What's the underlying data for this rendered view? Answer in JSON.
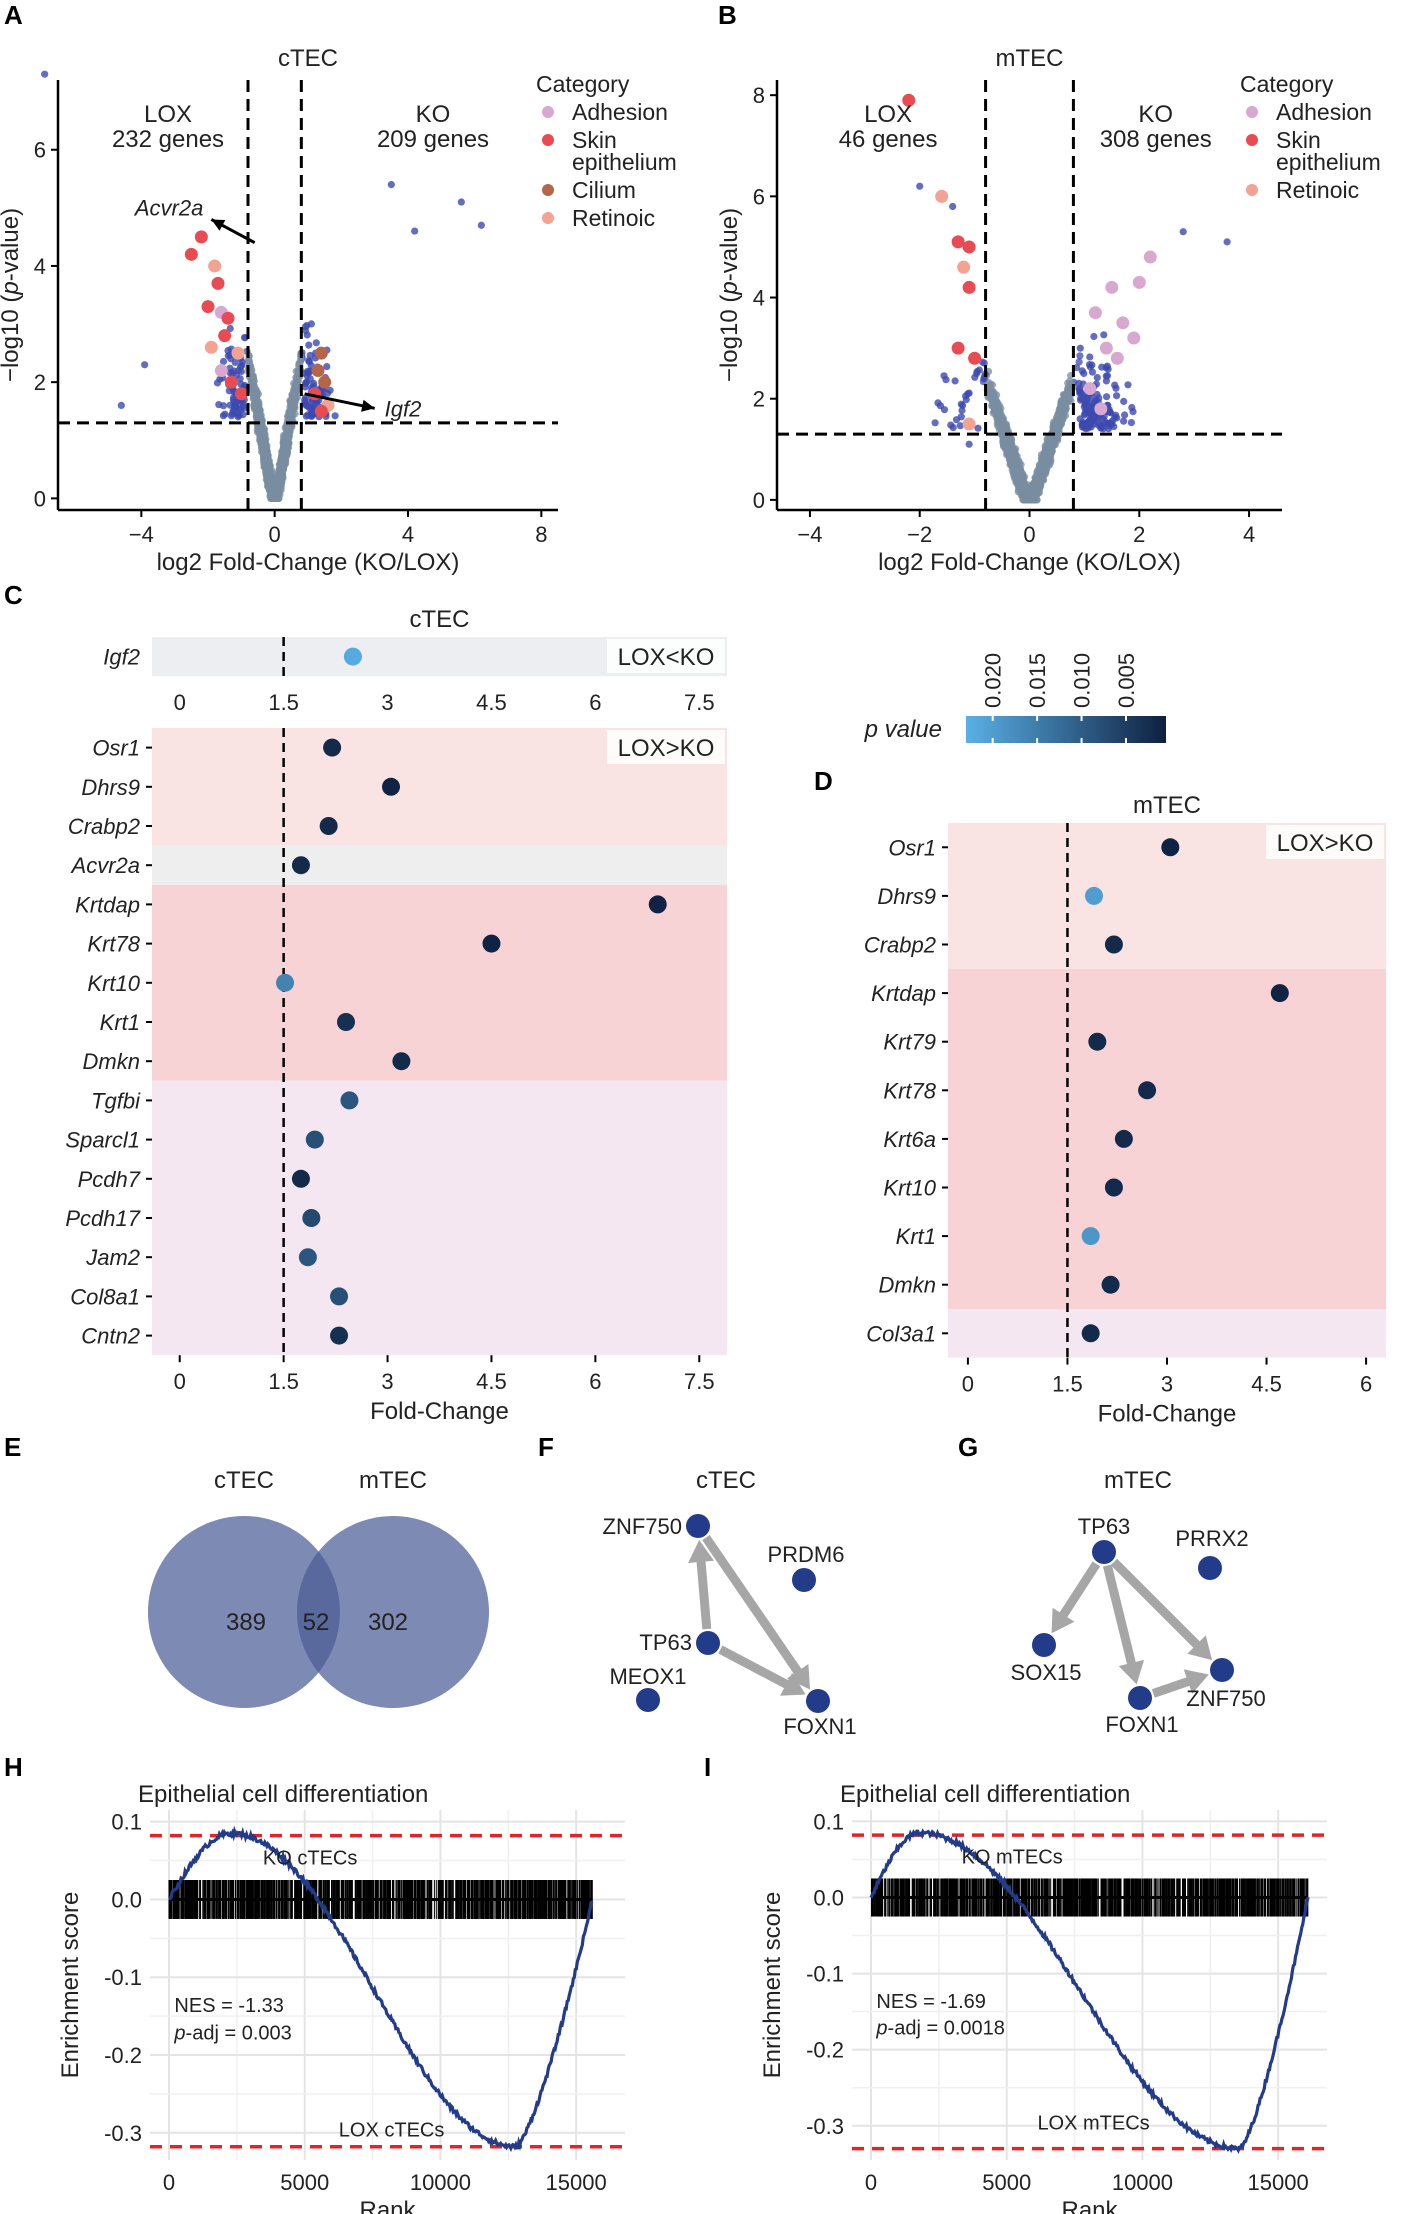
{
  "panels": {
    "A": "A",
    "B": "B",
    "C": "C",
    "D": "D",
    "E": "E",
    "F": "F",
    "G": "G",
    "H": "H",
    "I": "I"
  },
  "colors": {
    "ns": "#7a8ea1",
    "sig": "#3c4ab0",
    "adhesion": "#d9a8d0",
    "skin": "#e94b52",
    "cilium": "#b5654a",
    "retinoic": "#f2a391",
    "dark": "#0e2040",
    "node": "#233c8a",
    "edge": "#a6a6a6",
    "gsea": "#233c8a",
    "dashed_red": "#e0242a"
  },
  "chart_data": [
    {
      "id": "A",
      "type": "scatter",
      "title": "cTEC",
      "xlabel": "log2 Fold-Change (KO/LOX)",
      "ylabel": "−log10 (p-value)",
      "ylabel_parts": {
        "pre": "−log10 (",
        "mid": "p",
        "post": "-value)"
      },
      "xlim": [
        -6.5,
        8.5
      ],
      "ylim": [
        -0.2,
        7.2
      ],
      "xticks": [
        -4,
        0,
        4,
        8
      ],
      "xtick_labels": [
        "−4",
        "0",
        "4",
        "8"
      ],
      "yticks": [
        0,
        2,
        4,
        6
      ],
      "vlines": [
        -0.8,
        0.8
      ],
      "hline": 1.3,
      "left_group": {
        "label": "LOX",
        "count": "232 genes"
      },
      "right_group": {
        "label": "KO",
        "count": "209 genes"
      },
      "legend": {
        "title": "Category",
        "items": [
          {
            "name": "Adhesion",
            "key": "adhesion"
          },
          {
            "name": "Skin\nepithelium",
            "key": "skin"
          },
          {
            "name": "Cilium",
            "key": "cilium"
          },
          {
            "name": "Retinoic",
            "key": "retinoic"
          }
        ]
      },
      "annotations": [
        {
          "text": "Acvr2a",
          "x": -1.9,
          "y": 4.8,
          "from": [
            -0.6,
            4.4
          ],
          "to": [
            -1.9,
            4.8
          ]
        },
        {
          "text": "Igf2",
          "x": 3.2,
          "y": 1.55,
          "from": [
            0.9,
            1.8
          ],
          "to": [
            3.0,
            1.55
          ]
        }
      ],
      "special": [
        [
          -2.2,
          4.5
        ],
        [
          -2.5,
          4.2
        ],
        [
          -1.8,
          4.0
        ],
        [
          -1.7,
          3.7
        ],
        [
          -2.0,
          3.3
        ],
        [
          -1.6,
          3.2
        ],
        [
          -1.4,
          3.1
        ],
        [
          -1.5,
          2.8
        ],
        [
          -1.9,
          2.6
        ],
        [
          -1.6,
          2.2
        ],
        [
          -1.3,
          2.0
        ],
        [
          -1.1,
          2.5
        ],
        [
          -1.0,
          1.8
        ],
        [
          1.4,
          2.5
        ],
        [
          1.3,
          2.2
        ],
        [
          1.5,
          2.0
        ],
        [
          1.2,
          1.8
        ],
        [
          1.6,
          1.6
        ],
        [
          1.4,
          1.5
        ]
      ],
      "special_cat": [
        "skin",
        "skin",
        "retinoic",
        "skin",
        "skin",
        "adhesion",
        "skin",
        "skin",
        "retinoic",
        "adhesion",
        "skin",
        "retinoic",
        "skin",
        "cilium",
        "cilium",
        "cilium",
        "skin",
        "retinoic",
        "skin"
      ],
      "outliers": [
        [
          -6.9,
          7.3
        ],
        [
          6.2,
          4.7
        ],
        [
          5.6,
          5.1
        ],
        [
          3.5,
          5.4
        ],
        [
          4.2,
          4.6
        ],
        [
          -3.9,
          2.3
        ],
        [
          -4.6,
          1.6
        ]
      ]
    },
    {
      "id": "B",
      "type": "scatter",
      "title": "mTEC",
      "xlabel": "log2 Fold-Change (KO/LOX)",
      "ylabel": "−log10 (p-value)",
      "ylabel_parts": {
        "pre": "−log10 (",
        "mid": "p",
        "post": "-value)"
      },
      "xlim": [
        -4.6,
        4.6
      ],
      "ylim": [
        -0.2,
        8.3
      ],
      "xticks": [
        -4,
        -2,
        0,
        2,
        4
      ],
      "xtick_labels": [
        "−4",
        "−2",
        "0",
        "2",
        "4"
      ],
      "yticks": [
        0,
        2,
        4,
        6,
        8
      ],
      "vlines": [
        -0.8,
        0.8
      ],
      "hline": 1.3,
      "left_group": {
        "label": "LOX",
        "count": "46 genes"
      },
      "right_group": {
        "label": "KO",
        "count": "308 genes"
      },
      "legend": {
        "title": "Category",
        "items": [
          {
            "name": "Adhesion",
            "key": "adhesion"
          },
          {
            "name": "Skin\nepithelium",
            "key": "skin"
          },
          {
            "name": "Retinoic",
            "key": "retinoic"
          }
        ]
      },
      "special": [
        [
          -2.2,
          7.9
        ],
        [
          -1.6,
          6.0
        ],
        [
          -1.3,
          5.1
        ],
        [
          -1.1,
          5.0
        ],
        [
          -1.2,
          4.6
        ],
        [
          -1.1,
          4.2
        ],
        [
          -1.3,
          3.0
        ],
        [
          -1.1,
          1.5
        ],
        [
          -1.0,
          2.8
        ],
        [
          1.5,
          4.2
        ],
        [
          1.7,
          3.5
        ],
        [
          2.2,
          4.8
        ],
        [
          2.0,
          4.3
        ],
        [
          1.2,
          3.7
        ],
        [
          1.4,
          3.0
        ],
        [
          1.6,
          2.8
        ],
        [
          1.1,
          2.2
        ],
        [
          1.3,
          1.8
        ],
        [
          1.9,
          3.2
        ]
      ],
      "special_cat": [
        "skin",
        "retinoic",
        "skin",
        "skin",
        "retinoic",
        "skin",
        "skin",
        "retinoic",
        "skin",
        "adhesion",
        "adhesion",
        "adhesion",
        "adhesion",
        "adhesion",
        "adhesion",
        "adhesion",
        "adhesion",
        "adhesion",
        "adhesion"
      ],
      "outliers": [
        [
          -2.0,
          6.2
        ],
        [
          -1.4,
          5.8
        ],
        [
          3.6,
          5.1
        ],
        [
          2.8,
          5.3
        ],
        [
          -1.1,
          1.1
        ]
      ]
    },
    {
      "id": "C",
      "type": "dot",
      "title": "cTEC",
      "xlabel": "Fold-Change",
      "xlim": [
        -0.4,
        7.9
      ],
      "xticks": [
        0,
        1.5,
        3,
        4.5,
        6,
        7.5
      ],
      "xtick_labels": [
        "0",
        "1.5",
        "3",
        "4.5",
        "6",
        "7.5"
      ],
      "vline": 1.5,
      "top": {
        "label": "LOX<KO",
        "genes": [
          {
            "gene": "Igf2",
            "fc": 2.5,
            "p": 0.022
          }
        ]
      },
      "main_label": "LOX>KO",
      "groups": [
        {
          "cat": "retinoic",
          "genes": [
            {
              "gene": "Osr1",
              "fc": 2.2,
              "p": 0.002
            },
            {
              "gene": "Dhrs9",
              "fc": 3.05,
              "p": 0.001
            },
            {
              "gene": "Crabp2",
              "fc": 2.15,
              "p": 0.002
            }
          ]
        },
        {
          "cat": "cilium",
          "genes": [
            {
              "gene": "Acvr2a",
              "fc": 1.75,
              "p": 0.002
            }
          ]
        },
        {
          "cat": "skin",
          "genes": [
            {
              "gene": "Krtdap",
              "fc": 6.9,
              "p": 0.001
            },
            {
              "gene": "Krt78",
              "fc": 4.5,
              "p": 0.001
            },
            {
              "gene": "Krt10",
              "fc": 1.52,
              "p": 0.016
            },
            {
              "gene": "Krt1",
              "fc": 2.4,
              "p": 0.003
            },
            {
              "gene": "Dmkn",
              "fc": 3.2,
              "p": 0.002
            }
          ]
        },
        {
          "cat": "adhesion",
          "genes": [
            {
              "gene": "Tgfbi",
              "fc": 2.45,
              "p": 0.009
            },
            {
              "gene": "Sparcl1",
              "fc": 1.95,
              "p": 0.008
            },
            {
              "gene": "Pcdh7",
              "fc": 1.75,
              "p": 0.002
            },
            {
              "gene": "Pcdh17",
              "fc": 1.9,
              "p": 0.007
            },
            {
              "gene": "Jam2",
              "fc": 1.85,
              "p": 0.009
            },
            {
              "gene": "Col8a1",
              "fc": 2.3,
              "p": 0.008
            },
            {
              "gene": "Cntn2",
              "fc": 2.3,
              "p": 0.003
            }
          ]
        }
      ]
    },
    {
      "id": "D",
      "type": "dot",
      "title": "mTEC",
      "xlabel": "Fold-Change",
      "xlim": [
        -0.3,
        6.3
      ],
      "xticks": [
        0,
        1.5,
        3,
        4.5,
        6
      ],
      "xtick_labels": [
        "0",
        "1.5",
        "3",
        "4.5",
        "6"
      ],
      "vline": 1.5,
      "main_label": "LOX>KO",
      "groups": [
        {
          "cat": "retinoic",
          "genes": [
            {
              "gene": "Osr1",
              "fc": 3.05,
              "p": 0.001
            },
            {
              "gene": "Dhrs9",
              "fc": 1.9,
              "p": 0.02
            },
            {
              "gene": "Crabp2",
              "fc": 2.2,
              "p": 0.002
            }
          ]
        },
        {
          "cat": "skin",
          "genes": [
            {
              "gene": "Krtdap",
              "fc": 4.7,
              "p": 0.001
            },
            {
              "gene": "Krt79",
              "fc": 1.95,
              "p": 0.002
            },
            {
              "gene": "Krt78",
              "fc": 2.7,
              "p": 0.002
            },
            {
              "gene": "Krt6a",
              "fc": 2.35,
              "p": 0.002
            },
            {
              "gene": "Krt10",
              "fc": 2.2,
              "p": 0.002
            },
            {
              "gene": "Krt1",
              "fc": 1.85,
              "p": 0.019
            },
            {
              "gene": "Dmkn",
              "fc": 2.15,
              "p": 0.002
            }
          ]
        },
        {
          "cat": "adhesion",
          "genes": [
            {
              "gene": "Col3a1",
              "fc": 1.85,
              "p": 0.002
            }
          ]
        }
      ]
    },
    {
      "id": "colorbar",
      "type": "colorbar",
      "title": "p value",
      "ticks": [
        0.02,
        0.015,
        0.01,
        0.005
      ],
      "tick_labels": [
        "0.020",
        "0.015",
        "0.010",
        "0.005"
      ],
      "range": [
        0.023,
        0.0005
      ]
    },
    {
      "id": "E",
      "type": "venn",
      "sets": [
        {
          "name": "cTEC",
          "only": "389"
        },
        {
          "name": "mTEC",
          "only": "302"
        }
      ],
      "overlap": "52"
    },
    {
      "id": "F",
      "type": "network",
      "title": "cTEC",
      "nodes": [
        {
          "id": "ZNF750",
          "label": "ZNF750"
        },
        {
          "id": "PRDM6",
          "label": "PRDM6"
        },
        {
          "id": "TP63",
          "label": "TP63"
        },
        {
          "id": "MEOX1",
          "label": "MEOX1"
        },
        {
          "id": "FOXN1",
          "label": "FOXN1"
        }
      ],
      "edges": [
        [
          "TP63",
          "ZNF750"
        ],
        [
          "ZNF750",
          "FOXN1"
        ],
        [
          "TP63",
          "FOXN1"
        ]
      ]
    },
    {
      "id": "G",
      "type": "network",
      "title": "mTEC",
      "nodes": [
        {
          "id": "TP63",
          "label": "TP63"
        },
        {
          "id": "PRRX2",
          "label": "PRRX2"
        },
        {
          "id": "SOX15",
          "label": "SOX15"
        },
        {
          "id": "FOXN1",
          "label": "FOXN1"
        },
        {
          "id": "ZNF750",
          "label": "ZNF750"
        }
      ],
      "edges": [
        [
          "TP63",
          "SOX15"
        ],
        [
          "TP63",
          "FOXN1"
        ],
        [
          "TP63",
          "ZNF750"
        ],
        [
          "FOXN1",
          "ZNF750"
        ]
      ]
    },
    {
      "id": "H",
      "type": "line",
      "title": "Epithelial cell differentiation",
      "xlabel": "Rank",
      "ylabel": "Enrichment score",
      "xlim": [
        -700,
        16800
      ],
      "ylim": [
        -0.335,
        0.115
      ],
      "xticks": [
        0,
        5000,
        10000,
        15000
      ],
      "yticks": [
        0.1,
        0.0,
        -0.1,
        -0.2,
        -0.3
      ],
      "ytick_labels": [
        "0.1",
        "0.0",
        "-0.1",
        "-0.2",
        "-0.3"
      ],
      "upper_dash": 0.082,
      "lower_dash": -0.318,
      "top_label": "KO cTECs",
      "bottom_label": "LOX cTECs",
      "nes": "NES = -1.33",
      "padj_prefix": "p",
      "padj": "-adj = 0.003",
      "n_genes": 15600,
      "peak": {
        "rank": 2300,
        "es": 0.085
      },
      "min": {
        "rank": 12800,
        "es": -0.318
      },
      "cross": 4700,
      "hits_count": 900
    },
    {
      "id": "I",
      "type": "line",
      "title": "Epithelial cell differentiation",
      "xlabel": "Rank",
      "ylabel": "Enrichment score",
      "xlim": [
        -700,
        16800
      ],
      "ylim": [
        -0.345,
        0.115
      ],
      "xticks": [
        0,
        5000,
        10000,
        15000
      ],
      "yticks": [
        0.1,
        0.0,
        -0.1,
        -0.2,
        -0.3
      ],
      "ytick_labels": [
        "0.1",
        "0.0",
        "-0.1",
        "-0.2",
        "-0.3"
      ],
      "upper_dash": 0.082,
      "lower_dash": -0.33,
      "top_label": "KO mTECs",
      "bottom_label": "LOX mTECs",
      "nes": "NES = -1.69",
      "padj_prefix": "p",
      "padj": "-adj = 0.0018",
      "n_genes": 16100,
      "peak": {
        "rank": 1800,
        "es": 0.085
      },
      "min": {
        "rank": 13600,
        "es": -0.33
      },
      "cross": 5500,
      "hits_count": 1000
    }
  ]
}
